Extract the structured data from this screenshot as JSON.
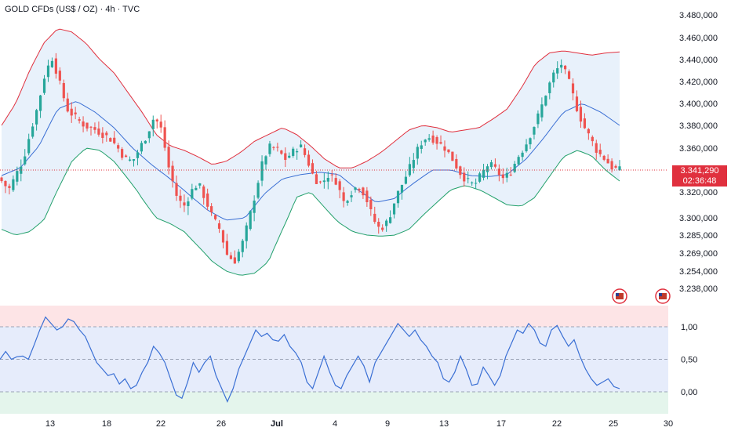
{
  "header": {
    "title": "GOLD CFDs (US$ / OZ) · 4h · TVC"
  },
  "price_marker": {
    "value": "3.341,290",
    "countdown": "02:36:48",
    "color": "#e0303e"
  },
  "colors": {
    "up": "#26a69a",
    "down": "#ef5350",
    "band_upper": "#e0303e",
    "band_lower": "#22a06b",
    "band_mid": "#3a6fd4",
    "band_fill": "#e8f1fb",
    "osc_line": "#3a6fd4",
    "osc_over": "#fde4e6",
    "osc_mid": "#e6ecfb",
    "osc_under": "#e4f5ec"
  },
  "chart_data": [
    {
      "type": "candlestick",
      "title": "GOLD CFDs (US$ / OZ) · 4h · TVC",
      "indicator": "Bollinger Bands",
      "y_ticks": [
        "3.480,000",
        "3.460,000",
        "3.440,000",
        "3.420,000",
        "3.400,000",
        "3.380,000",
        "3.360,000",
        "3.340,000",
        "3.320,000",
        "3.300,000",
        "3.285,000",
        "3.269,000",
        "3.254,000",
        "3.238,000"
      ],
      "x_ticks": [
        "13",
        "18",
        "22",
        "26",
        "Jul",
        "4",
        "9",
        "13",
        "17",
        "22",
        "25",
        "30"
      ],
      "close_path": [
        3330,
        3322,
        3336,
        3350,
        3375,
        3398,
        3428,
        3442,
        3418,
        3395,
        3388,
        3382,
        3378,
        3376,
        3372,
        3368,
        3360,
        3350,
        3348,
        3360,
        3372,
        3388,
        3376,
        3342,
        3318,
        3308,
        3320,
        3328,
        3315,
        3300,
        3290,
        3268,
        3262,
        3275,
        3298,
        3322,
        3350,
        3362,
        3358,
        3350,
        3356,
        3363,
        3350,
        3332,
        3328,
        3336,
        3330,
        3312,
        3320,
        3326,
        3318,
        3300,
        3290,
        3296,
        3312,
        3326,
        3340,
        3356,
        3368,
        3370,
        3365,
        3360,
        3350,
        3338,
        3330,
        3326,
        3336,
        3346,
        3340,
        3332,
        3338,
        3352,
        3362,
        3376,
        3392,
        3412,
        3428,
        3436,
        3420,
        3398,
        3380,
        3368,
        3356,
        3350,
        3342,
        3340
      ],
      "upper_band": [
        3380,
        3400,
        3430,
        3455,
        3468,
        3465,
        3455,
        3440,
        3428,
        3410,
        3392,
        3372,
        3362,
        3358,
        3352,
        3345,
        3348,
        3356,
        3366,
        3372,
        3378,
        3372,
        3362,
        3350,
        3342,
        3342,
        3348,
        3356,
        3366,
        3376,
        3380,
        3378,
        3374,
        3376,
        3378,
        3386,
        3395,
        3414,
        3436,
        3446,
        3448,
        3446,
        3444,
        3446,
        3447
      ],
      "lower_band": [
        3290,
        3285,
        3288,
        3298,
        3322,
        3348,
        3360,
        3358,
        3348,
        3332,
        3315,
        3300,
        3295,
        3288,
        3275,
        3262,
        3254,
        3250,
        3252,
        3262,
        3290,
        3316,
        3320,
        3308,
        3296,
        3288,
        3285,
        3284,
        3285,
        3290,
        3302,
        3312,
        3322,
        3326,
        3322,
        3316,
        3310,
        3309,
        3316,
        3334,
        3352,
        3358,
        3353,
        3340,
        3330
      ],
      "mid_band": [
        3335,
        3342,
        3362,
        3395,
        3402,
        3392,
        3378,
        3360,
        3345,
        3332,
        3318,
        3306,
        3298,
        3300,
        3318,
        3332,
        3336,
        3338,
        3336,
        3322,
        3312,
        3315,
        3328,
        3340,
        3340,
        3335,
        3334,
        3336,
        3350,
        3370,
        3392,
        3400,
        3392,
        3380
      ]
    },
    {
      "type": "line",
      "indicator": "Stochastic RSI",
      "y_ticks": [
        "1,00",
        "0,50",
        "0,00"
      ],
      "levels": [
        1.0,
        0.5,
        0.0
      ],
      "values": [
        0.5,
        0.62,
        0.5,
        0.54,
        0.55,
        0.5,
        0.72,
        0.95,
        1.15,
        1.05,
        0.95,
        1.0,
        1.12,
        1.08,
        0.95,
        0.85,
        0.65,
        0.45,
        0.35,
        0.25,
        0.28,
        0.12,
        0.2,
        0.05,
        0.1,
        0.3,
        0.45,
        0.7,
        0.6,
        0.45,
        0.2,
        -0.05,
        -0.1,
        0.15,
        0.45,
        0.3,
        0.45,
        0.55,
        0.25,
        0.05,
        -0.15,
        0.05,
        0.35,
        0.55,
        0.75,
        0.95,
        0.85,
        0.9,
        0.8,
        0.78,
        0.88,
        0.7,
        0.6,
        0.45,
        0.15,
        0.05,
        0.3,
        0.55,
        0.3,
        0.1,
        0.05,
        0.25,
        0.4,
        0.55,
        0.4,
        0.15,
        0.45,
        0.6,
        0.75,
        0.9,
        1.05,
        0.95,
        0.85,
        0.95,
        0.8,
        0.7,
        0.55,
        0.45,
        0.2,
        0.15,
        0.3,
        0.55,
        0.35,
        0.1,
        0.12,
        0.38,
        0.25,
        0.1,
        0.25,
        0.55,
        0.75,
        0.95,
        0.9,
        1.05,
        0.95,
        0.75,
        0.7,
        0.95,
        1.02,
        0.85,
        0.7,
        0.8,
        0.55,
        0.35,
        0.2,
        0.1,
        0.15,
        0.2,
        0.08,
        0.05
      ]
    }
  ]
}
